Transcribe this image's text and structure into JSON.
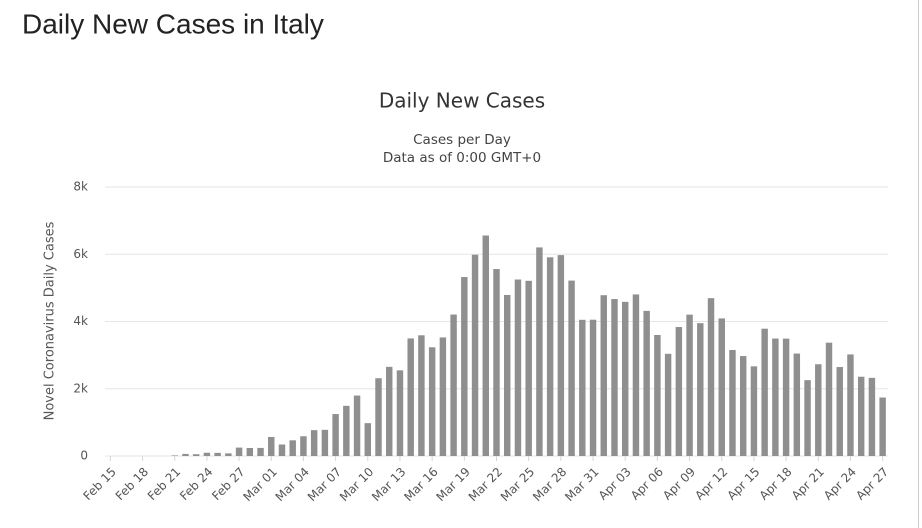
{
  "header": {
    "title": "Daily New Cases in Italy"
  },
  "chart_data": {
    "type": "bar",
    "title": "Daily New Cases",
    "subtitle": [
      "Cases per Day",
      "Data as of 0:00 GMT+0"
    ],
    "y_label": "Novel Coronavirus Daily Cases",
    "categories": [
      "Feb 15",
      null,
      null,
      "Feb 18",
      null,
      null,
      "Feb 21",
      null,
      null,
      "Feb 24",
      null,
      null,
      "Feb 27",
      null,
      null,
      "Mar 01",
      null,
      null,
      "Mar 04",
      null,
      null,
      "Mar 07",
      null,
      null,
      "Mar 10",
      null,
      null,
      "Mar 13",
      null,
      null,
      "Mar 16",
      null,
      null,
      "Mar 19",
      null,
      null,
      "Mar 22",
      null,
      null,
      "Mar 25",
      null,
      null,
      "Mar 28",
      null,
      null,
      "Mar 31",
      null,
      null,
      "Apr 03",
      null,
      null,
      "Apr 06",
      null,
      null,
      "Apr 09",
      null,
      null,
      "Apr 12",
      null,
      null,
      "Apr 15",
      null,
      null,
      "Apr 18",
      null,
      null,
      "Apr 21",
      null,
      null,
      "Apr 24",
      null,
      null,
      "Apr 27"
    ],
    "values": [
      0,
      0,
      0,
      0,
      0,
      0,
      17,
      62,
      53,
      97,
      93,
      78,
      250,
      238,
      240,
      566,
      342,
      466,
      587,
      769,
      778,
      1247,
      1492,
      1797,
      977,
      2313,
      2651,
      2547,
      3497,
      3590,
      3233,
      3526,
      4207,
      5322,
      5986,
      6557,
      5560,
      4789,
      5249,
      5210,
      6203,
      5909,
      5974,
      5217,
      4050,
      4053,
      4782,
      4668,
      4585,
      4805,
      4316,
      3599,
      3039,
      3836,
      4204,
      3951,
      4694,
      4092,
      3153,
      2972,
      2667,
      3786,
      3493,
      3491,
      3047,
      2256,
      2729,
      3370,
      2646,
      3021,
      2357,
      2324,
      1739
    ],
    "color": "#8f8f8f",
    "ylim": [
      0,
      8000
    ],
    "yticks": [
      0,
      {
        "value": 2000,
        "label": "2k"
      },
      {
        "value": 4000,
        "label": "4k"
      },
      {
        "value": 6000,
        "label": "6k"
      },
      {
        "value": 8000,
        "label": "8k"
      }
    ],
    "grid": true
  }
}
